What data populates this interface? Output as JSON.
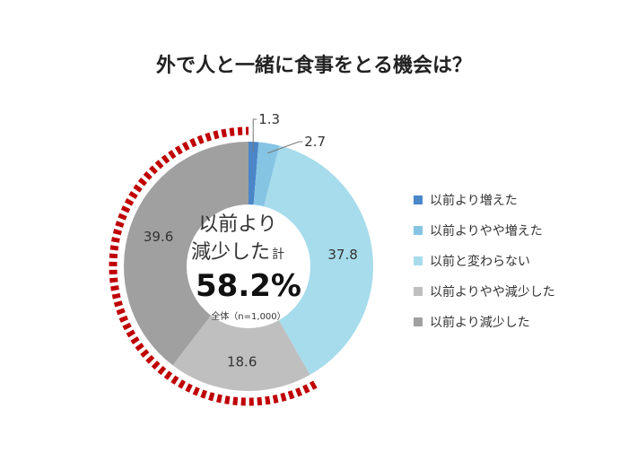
{
  "chart_data": {
    "type": "pie",
    "title": "外で人と一緒に食事をとる機会は？",
    "categories": [
      "以前より増えた",
      "以前よりやや増えた",
      "以前と変わらない",
      "以前よりやや減少した",
      "以前より減少した"
    ],
    "values": [
      1.3,
      2.7,
      37.8,
      18.6,
      39.6
    ],
    "value_labels": [
      "1.3",
      "2.7",
      "37.8",
      "18.6",
      "39.6"
    ],
    "colors": [
      "#4a86c8",
      "#86c4e4",
      "#a6dcec",
      "#bfbfbf",
      "#a0a0a0"
    ],
    "legend_position": "right",
    "highlight": "dashed red arc marking the decreased segments"
  },
  "center": {
    "line1": "以前より",
    "line2": "減少した",
    "suffix": "計",
    "value": "58.2%",
    "note": "全体（n=1,000）"
  }
}
